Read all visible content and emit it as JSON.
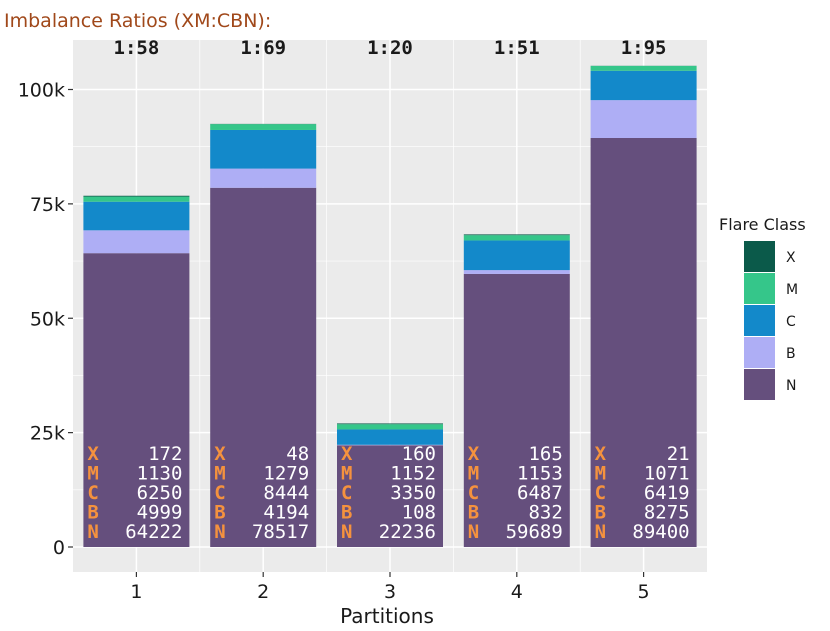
{
  "chart_data": {
    "type": "bar",
    "stacked": true,
    "title": "Imbalance Ratios (XM:CBN):",
    "xlabel": "Partitions",
    "ylabel": "",
    "categories": [
      "1",
      "2",
      "3",
      "4",
      "5"
    ],
    "ratios": [
      "1:58",
      "1:69",
      "1:20",
      "1:51",
      "1:95"
    ],
    "ylim": [
      0,
      110000
    ],
    "yticks": [
      0,
      25000,
      50000,
      75000,
      100000
    ],
    "ytick_labels": [
      "0",
      "25k",
      "50k",
      "75k",
      "100k"
    ],
    "grid": true,
    "legend_title": "Flare Class",
    "legend_position": "right",
    "series": [
      {
        "name": "N",
        "color": "#654f7d",
        "values": [
          64222,
          78517,
          22236,
          59689,
          89400
        ]
      },
      {
        "name": "B",
        "color": "#aeaef5",
        "values": [
          4999,
          4194,
          108,
          832,
          8275
        ]
      },
      {
        "name": "C",
        "color": "#1389ca",
        "values": [
          6250,
          8444,
          3350,
          6487,
          6419
        ]
      },
      {
        "name": "M",
        "color": "#35c68a",
        "values": [
          1130,
          1279,
          1152,
          1153,
          1071
        ]
      },
      {
        "name": "X",
        "color": "#0b5a4a",
        "values": [
          172,
          48,
          160,
          165,
          21
        ]
      }
    ],
    "count_rows": [
      "X",
      "M",
      "C",
      "B",
      "N"
    ]
  },
  "colors": {
    "title": "#a0481a",
    "count_letter": "#f5923e",
    "count_value": "#ffffff",
    "panel_background": "#ebebeb",
    "grid_line": "#ffffff"
  }
}
